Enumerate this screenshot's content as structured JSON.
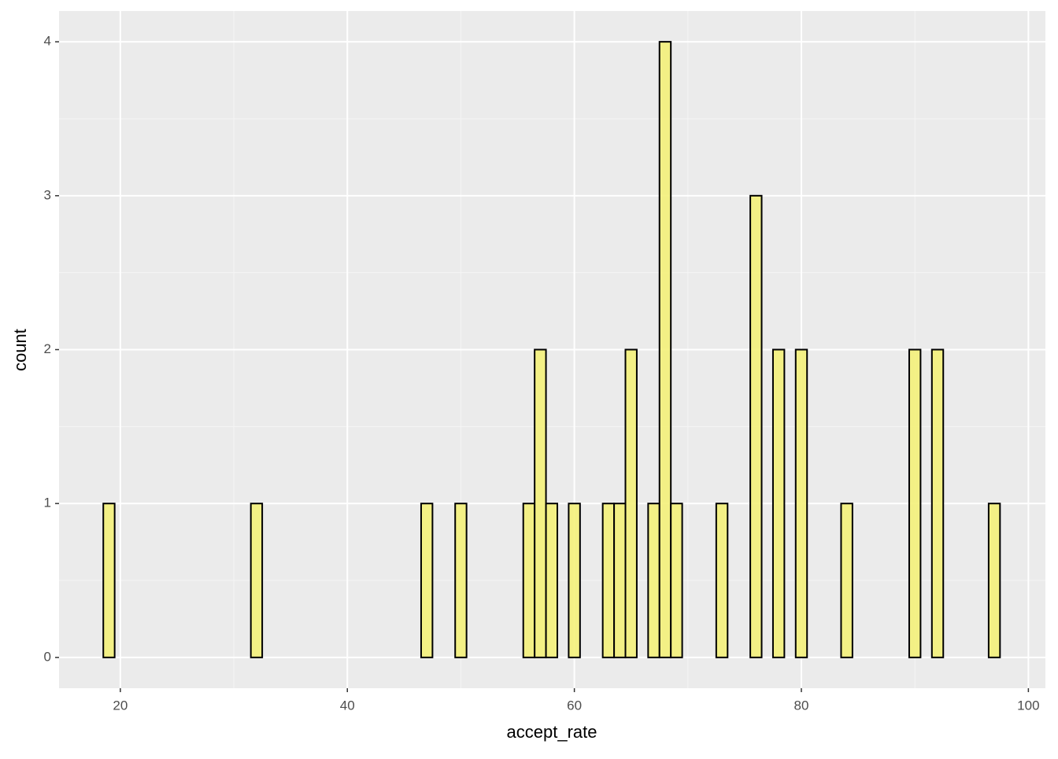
{
  "chart_data": {
    "type": "histogram",
    "x_label": "accept_rate",
    "y_label": "count",
    "bins": [
      18.5,
      19.5,
      20.5,
      21.5,
      22.5,
      23.5,
      24.5,
      25.5,
      26.5,
      27.5,
      28.5,
      29.5,
      30.5,
      31.5,
      32.5,
      33.5,
      34.5,
      35.5,
      36.5,
      37.5,
      38.5,
      39.5,
      40.5,
      41.5,
      42.5,
      43.5,
      44.5,
      45.5,
      46.5,
      47.5,
      48.5,
      49.5,
      50.5,
      51.5,
      52.5,
      53.5,
      54.5,
      55.5,
      56.5,
      57.5,
      58.5,
      59.5,
      60.5,
      61.5,
      62.5,
      63.5,
      64.5,
      65.5,
      66.5,
      67.5,
      68.5,
      69.5,
      70.5,
      71.5,
      72.5,
      73.5,
      74.5,
      75.5,
      76.5,
      77.5,
      78.5,
      79.5,
      80.5,
      81.5,
      82.5,
      83.5,
      84.5,
      85.5,
      86.5,
      87.5,
      88.5,
      89.5,
      90.5,
      91.5,
      92.5,
      93.5,
      94.5,
      95.5,
      96.5,
      97.5
    ],
    "values": [
      1,
      0,
      0,
      0,
      0,
      0,
      0,
      0,
      0,
      0,
      0,
      0,
      0,
      1,
      0,
      0,
      0,
      0,
      0,
      0,
      0,
      0,
      0,
      0,
      0,
      0,
      0,
      0,
      1,
      0,
      0,
      1,
      0,
      0,
      0,
      0,
      0,
      1,
      2,
      1,
      0,
      1,
      0,
      0,
      1,
      1,
      2,
      0,
      1,
      4,
      1,
      0,
      0,
      0,
      1,
      0,
      0,
      3,
      0,
      2,
      0,
      2,
      0,
      0,
      0,
      1,
      0,
      0,
      0,
      0,
      0,
      2,
      0,
      2,
      0,
      0,
      0,
      0,
      1
    ],
    "color": "#f4f17a",
    "edge_color": "#000000",
    "xlim": [
      14.6,
      101.5
    ],
    "xticks": [
      20,
      40,
      60,
      80,
      100
    ],
    "ylim": [
      -0.2,
      4.2
    ],
    "yticks": [
      0,
      1,
      2,
      3,
      4
    ],
    "grid": true
  }
}
